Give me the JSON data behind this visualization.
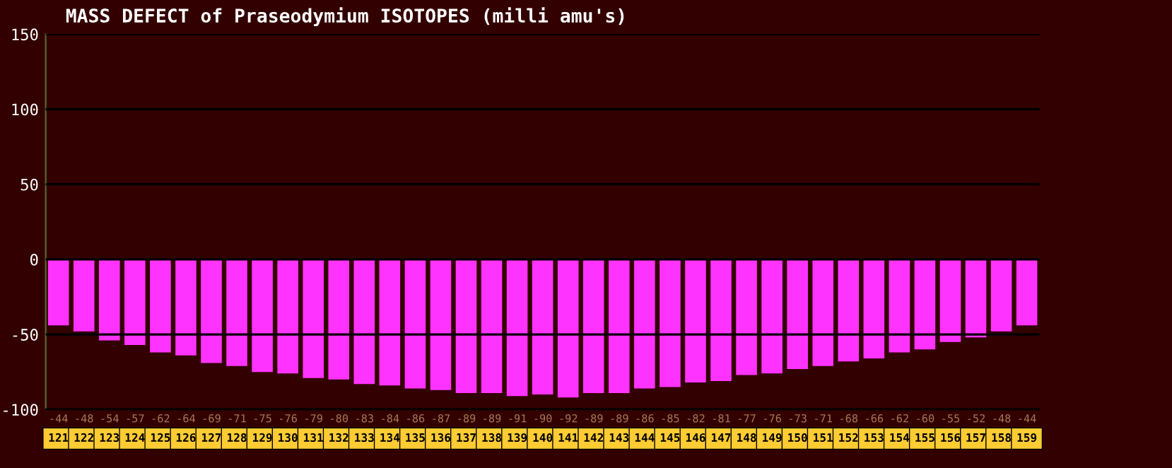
{
  "chart_data": {
    "type": "bar",
    "title": "MASS DEFECT of Praseodymium ISOTOPES (milli amu's)",
    "categories": [
      "121",
      "122",
      "123",
      "124",
      "125",
      "126",
      "127",
      "128",
      "129",
      "130",
      "131",
      "132",
      "133",
      "134",
      "135",
      "136",
      "137",
      "138",
      "139",
      "140",
      "141",
      "142",
      "143",
      "144",
      "145",
      "146",
      "147",
      "148",
      "149",
      "150",
      "151",
      "152",
      "153",
      "154",
      "155",
      "156",
      "157",
      "158",
      "159"
    ],
    "values": [
      -44,
      -48,
      -54,
      -57,
      -62,
      -64,
      -69,
      -71,
      -75,
      -76,
      -79,
      -80,
      -83,
      -84,
      -86,
      -87,
      -89,
      -89,
      -91,
      -90,
      -92,
      -89,
      -89,
      -86,
      -85,
      -82,
      -81,
      -77,
      -76,
      -73,
      -71,
      -68,
      -66,
      -62,
      -60,
      -55,
      -52,
      -48,
      -44
    ],
    "color": "#ff33ff",
    "ylim": [
      -100,
      150
    ],
    "yticks": [
      -100,
      -50,
      0,
      50,
      100,
      150
    ],
    "grid": "y",
    "data_labels": true
  }
}
